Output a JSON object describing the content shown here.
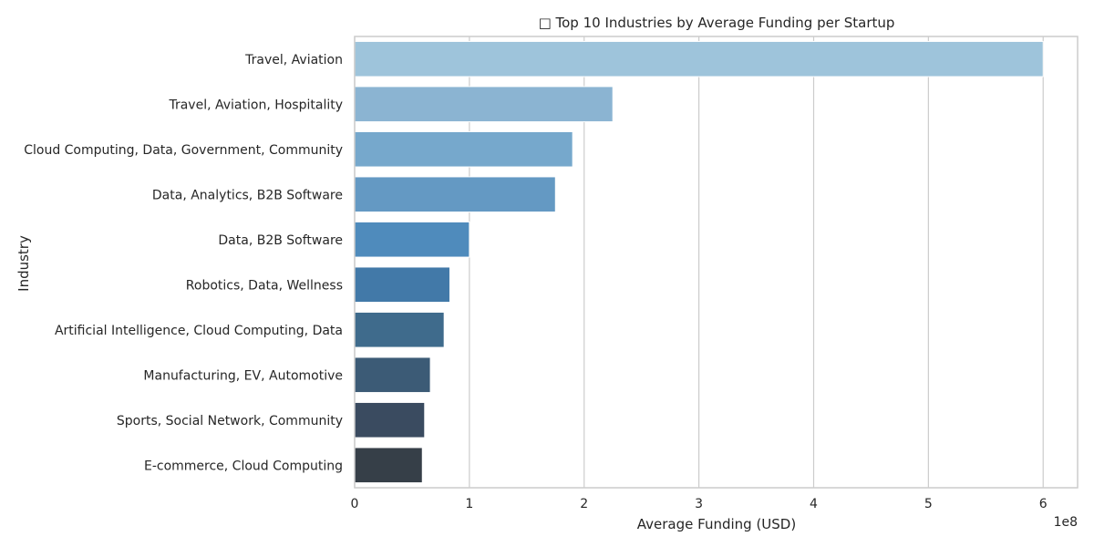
{
  "chart_data": {
    "type": "bar",
    "orientation": "horizontal",
    "title": "□ Top 10 Industries by Average Funding per Startup",
    "xlabel": "Average Funding (USD)",
    "ylabel": "Industry",
    "x_offset_text": "1e8",
    "xlim": [
      0,
      6.3
    ],
    "xticks": [
      0,
      1,
      2,
      3,
      4,
      5,
      6
    ],
    "xtick_labels": [
      "0",
      "1",
      "2",
      "3",
      "4",
      "5",
      "6"
    ],
    "grid": true,
    "categories": [
      "Travel, Aviation",
      "Travel, Aviation, Hospitality",
      "Cloud Computing, Data, Government, Community",
      "Data, Analytics, B2B Software",
      "Data, B2B Software",
      "Robotics, Data, Wellness",
      "Artificial Intelligence, Cloud Computing, Data",
      "Manufacturing, EV, Automotive",
      "Sports, Social Network, Community",
      "E-commerce, Cloud Computing"
    ],
    "values": [
      6.0,
      2.25,
      1.9,
      1.75,
      1.0,
      0.83,
      0.78,
      0.66,
      0.61,
      0.59
    ],
    "colors": [
      "#9ec4db",
      "#8bb4d2",
      "#76a8cc",
      "#6499c3",
      "#4f8bbc",
      "#4279a8",
      "#3f6b8c",
      "#3c5b76",
      "#3a4b60",
      "#363f48"
    ]
  }
}
